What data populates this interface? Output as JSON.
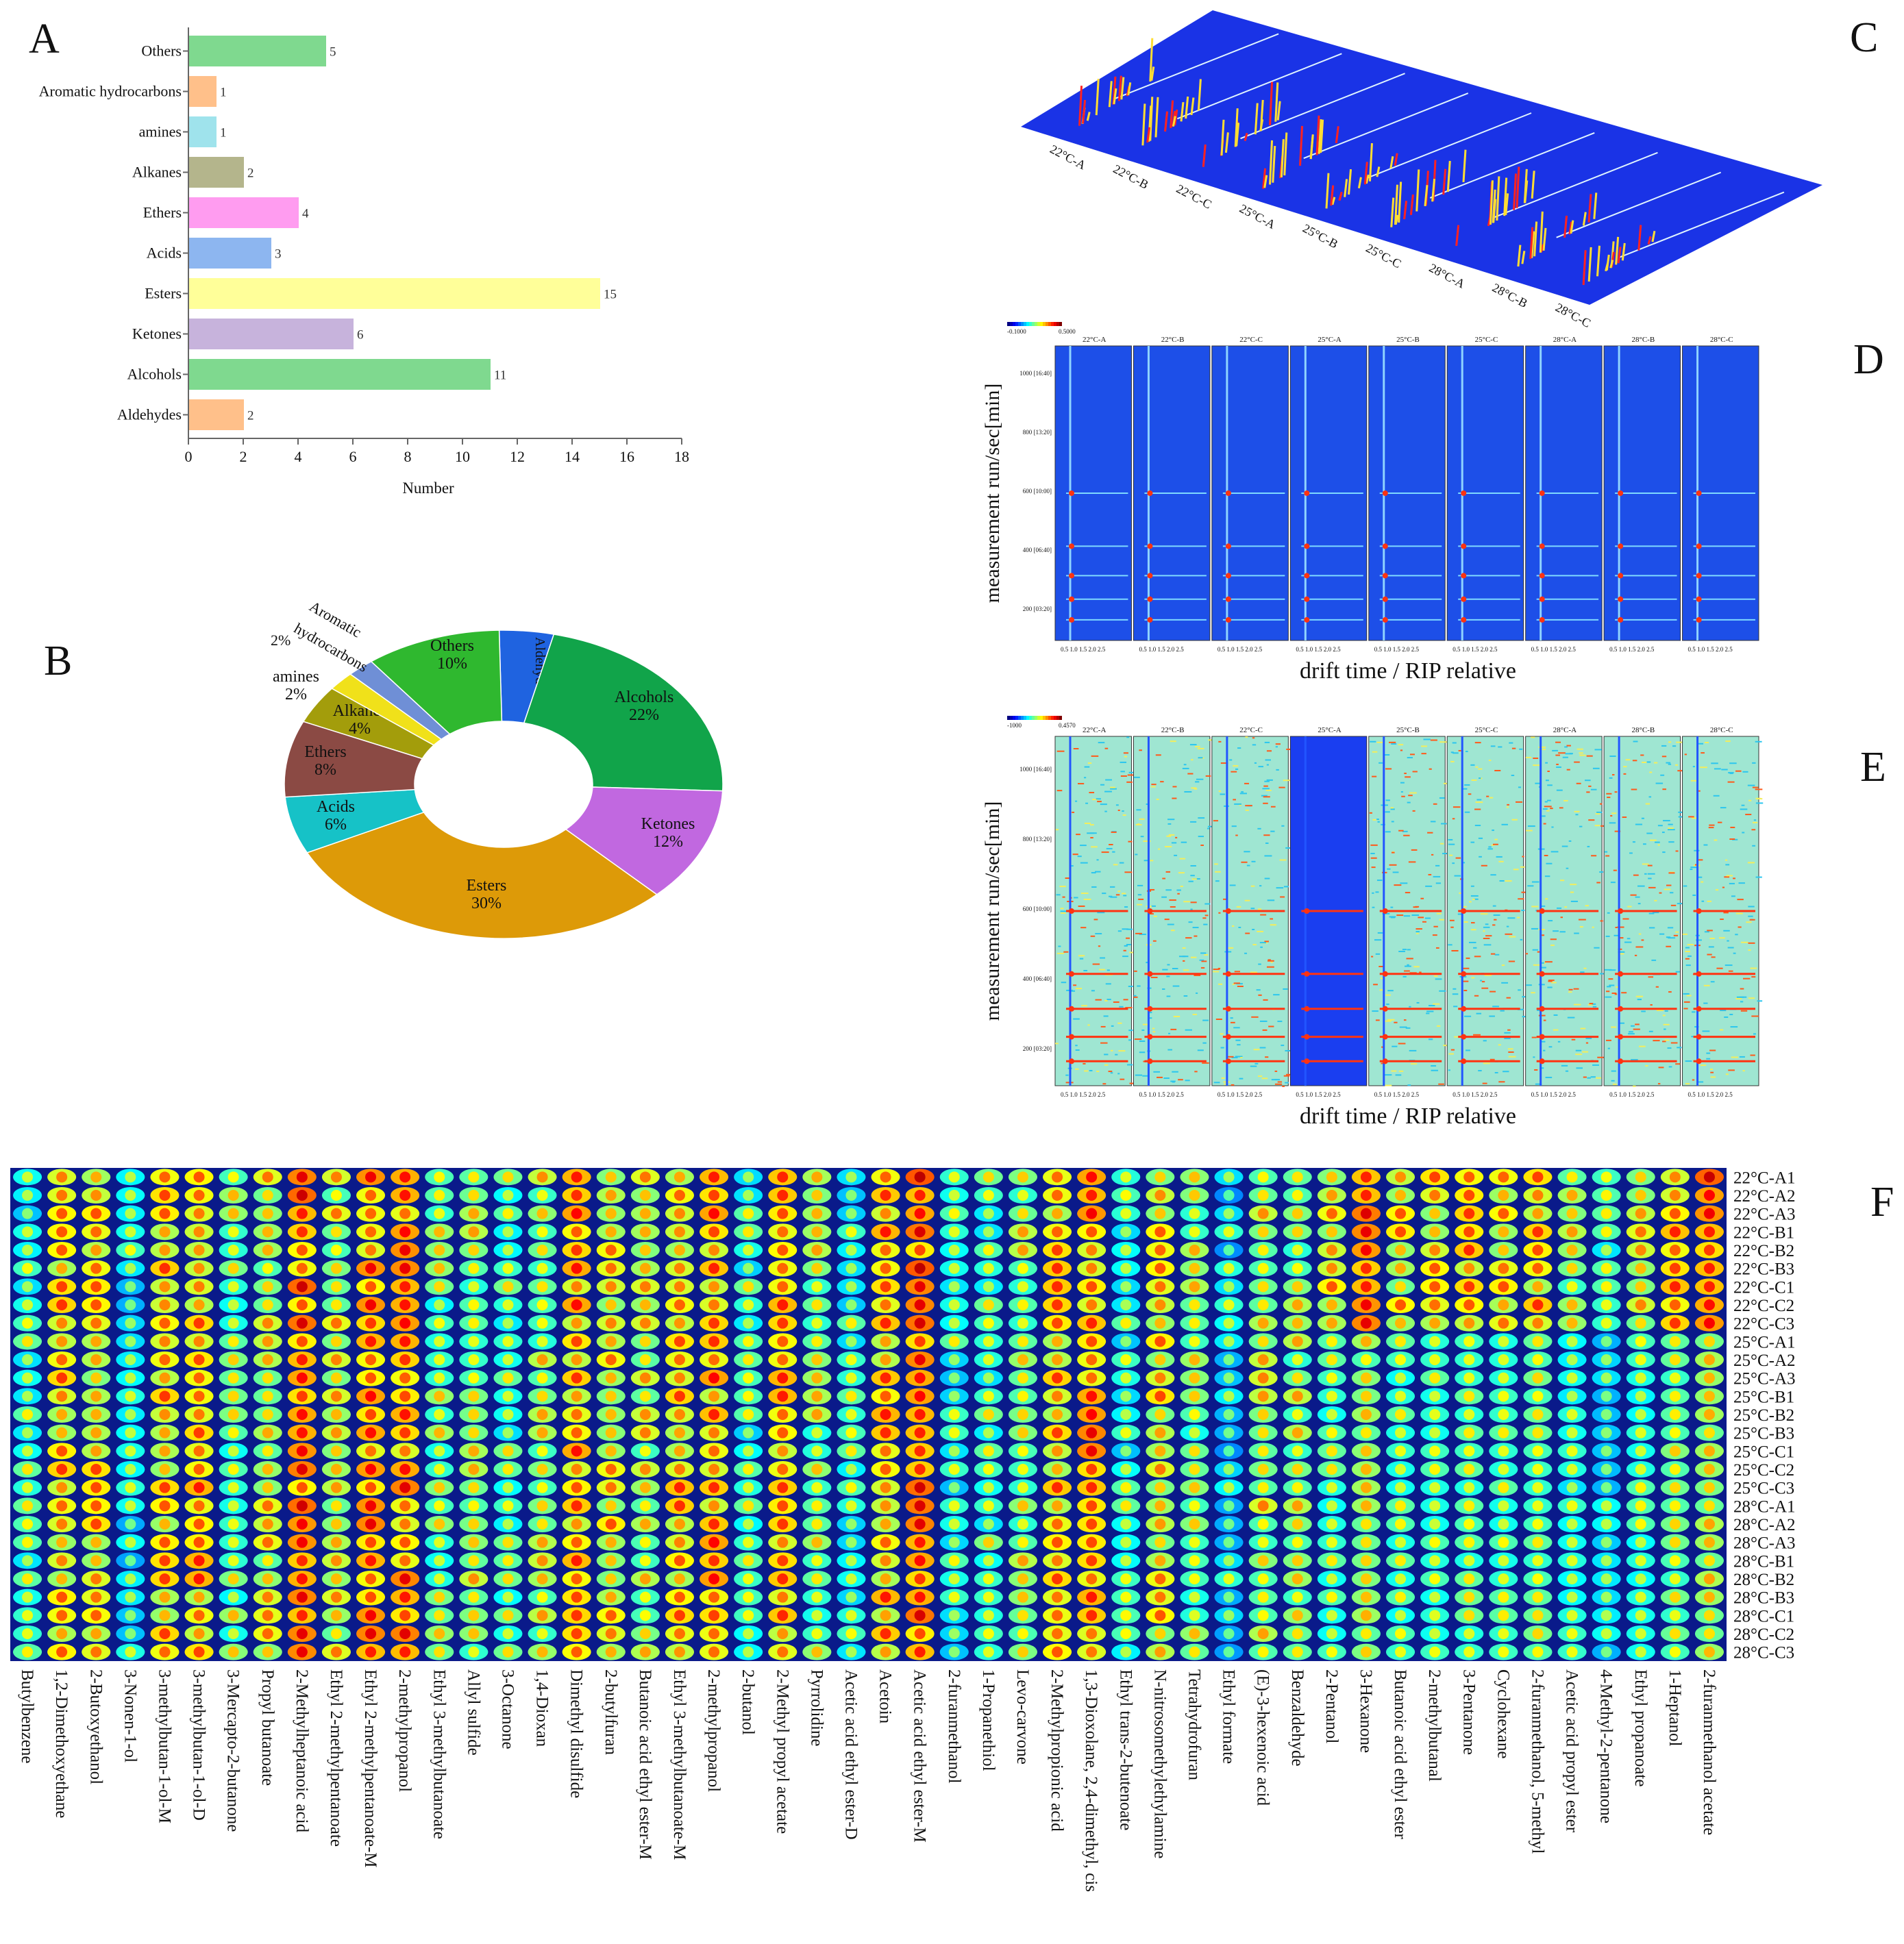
{
  "panels": {
    "A": "A",
    "B": "B",
    "C": "C",
    "D": "D",
    "E": "E",
    "F": "F"
  },
  "chart_data": [
    {
      "id": "A",
      "type": "bar",
      "orientation": "horizontal",
      "categories": [
        "Others",
        "Aromatic hydrocarbons",
        "amines",
        "Alkanes",
        "Ethers",
        "Acids",
        "Esters",
        "Ketones",
        "Alcohols",
        "Aldehydes"
      ],
      "values": [
        5,
        1,
        1,
        2,
        4,
        3,
        15,
        6,
        11,
        2
      ],
      "colors": [
        "#7fd98f",
        "#ffc08a",
        "#9fe3ec",
        "#b4b58c",
        "#ff9cf0",
        "#8db6f0",
        "#ffff99",
        "#c7b3dc",
        "#7fd98f",
        "#ffc08a"
      ],
      "xlabel": "Number",
      "xlim": [
        0,
        18
      ],
      "xticks": [
        0,
        2,
        4,
        6,
        8,
        10,
        12,
        14,
        16,
        18
      ]
    },
    {
      "id": "B",
      "type": "pie",
      "donut": true,
      "slices": [
        {
          "label": "Aldehydes",
          "pct": "4%",
          "value": 4,
          "color": "#1f63e0"
        },
        {
          "label": "Alcohols",
          "pct": "22%",
          "value": 22,
          "color": "#11a44a"
        },
        {
          "label": "Ketones",
          "pct": "12%",
          "value": 12,
          "color": "#c168e0"
        },
        {
          "label": "Esters",
          "pct": "30%",
          "value": 30,
          "color": "#dd9a08"
        },
        {
          "label": "Acids",
          "pct": "6%",
          "value": 6,
          "color": "#16c2c7"
        },
        {
          "label": "Ethers",
          "pct": "8%",
          "value": 8,
          "color": "#8b4a44"
        },
        {
          "label": "Alkanes",
          "pct": "4%",
          "value": 4,
          "color": "#a39d0b"
        },
        {
          "label": "amines",
          "pct": "2%",
          "value": 2,
          "color": "#f0e11a"
        },
        {
          "label": "Aromatic hydrocarbons",
          "pct": "2%",
          "value": 2,
          "color": "#6f8fd6"
        },
        {
          "label": "Others",
          "pct": "10%",
          "value": 10,
          "color": "#2fb82f"
        }
      ],
      "label_aromatic_line1": "Aromatic",
      "label_aromatic_line2": "hydrocarbons"
    },
    {
      "id": "C",
      "type": "heatmap",
      "description_labels": [
        "22°C-A",
        "22°C-B",
        "22°C-C",
        "25°C-A",
        "25°C-B",
        "25°C-C",
        "28°C-A",
        "28°C-B",
        "28°C-C"
      ]
    },
    {
      "id": "D",
      "type": "heatmap",
      "samples": [
        "22°C-A",
        "22°C-B",
        "22°C-C",
        "25°C-A",
        "25°C-B",
        "25°C-C",
        "28°C-A",
        "28°C-B",
        "28°C-C"
      ],
      "ylabel": "measurement run/sec[min]",
      "xlabel": "drift time / RIP relative",
      "yticks": [
        "1000 [16:40]",
        "800 [13:20]",
        "600 [10:00]",
        "400 [06:40]",
        "200 [03:20]"
      ],
      "xticks": "0.5 1.0 1.5 2.0 2.5",
      "scale_min": "-0.1000",
      "scale_max": "0.5000"
    },
    {
      "id": "E",
      "type": "heatmap",
      "samples": [
        "22°C-A",
        "22°C-B",
        "22°C-C",
        "25°C-A",
        "25°C-B",
        "25°C-C",
        "28°C-A",
        "28°C-B",
        "28°C-C"
      ],
      "ylabel": "measurement run/sec[min]",
      "xlabel": "drift time / RIP relative",
      "yticks": [
        "1000 [16:40]",
        "800 [13:20]",
        "600 [10:00]",
        "400 [06:40]",
        "200 [03:20]"
      ],
      "xticks": "0.5 1.0 1.5 2.0 2.5",
      "scale_min": "-1000",
      "scale_max": "0.4570"
    },
    {
      "id": "F",
      "type": "heatmap",
      "rows": [
        "22°C-A1",
        "22°C-A2",
        "22°C-A3",
        "22°C-B1",
        "22°C-B2",
        "22°C-B3",
        "22°C-C1",
        "22°C-C2",
        "22°C-C3",
        "25°C-A1",
        "25°C-A2",
        "25°C-A3",
        "25°C-B1",
        "25°C-B2",
        "25°C-B3",
        "25°C-C1",
        "25°C-C2",
        "25°C-C3",
        "28°C-A1",
        "28°C-A2",
        "28°C-A3",
        "28°C-B1",
        "28°C-B2",
        "28°C-B3",
        "28°C-C1",
        "28°C-C2",
        "28°C-C3"
      ],
      "columns": [
        "Butylbenzene",
        "1,2-Dimethoxyethane",
        "2-Butoxyethanol",
        "3-Nonen-1-ol",
        "3-methylbutan-1-ol-M",
        "3-methylbutan-1-ol-D",
        "3-Mercapto-2-butanone",
        "Propyl butanoate",
        "2-Methylheptanoic acid",
        "Ethyl 2-methylpentanoate",
        "Ethyl 2-methylpentanoate-M",
        "2-methylpropanol",
        "Ethyl 3-methylbutanoate",
        "Allyl sulfide",
        "3-Octanone",
        "1,4-Dioxan",
        "Dimethyl disulfide",
        "2-butylfuran",
        "Butanoic acid ethyl ester-M",
        "Ethyl 3-methylbutanoate-M",
        "2-methylpropanol",
        "2-butanol",
        "2-Methyl propyl acetate",
        "Pyrrolidine",
        "Acetic acid ethyl ester-D",
        "Acetoin",
        "Acetic acid ethyl ester-M",
        "2-furanmethanol",
        "1-Propanethiol",
        "Levo-carvone",
        "2-Methylpropionic acid",
        "1,3-Dioxolane, 2,4-dimethyl, cis",
        "Ethyl trans-2-butenoate",
        "N-nitrosomethylethylamine",
        "Tetrahydrofuran",
        "Ethyl formate",
        "(E)-3-hexenoic acid",
        "Benzaldehyde",
        "2-Pentanol",
        "3-Hexanone",
        "Butanoic acid ethyl ester",
        "2-methylbutanal",
        "3-Pentanone",
        "Cyclohexane",
        "2-furanmethanol, 5-methyl",
        "Acetic acid propyl ester",
        "4-Methyl-2-pentanone",
        "Ethyl propanoate",
        "1-Heptanol",
        "2-furanmethanol acetate"
      ]
    }
  ]
}
